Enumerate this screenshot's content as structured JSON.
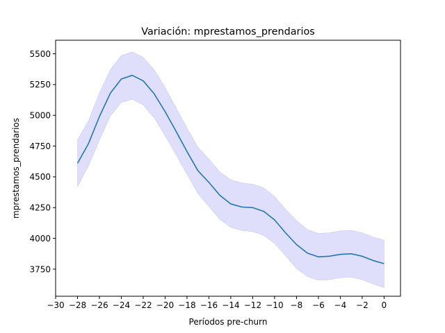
{
  "chart_data": {
    "type": "line",
    "title": "Variación: mprestamos_prendarios",
    "xlabel": "Períodos pre-churn",
    "ylabel": "mprestamos_prendarios",
    "xlim": [
      -30,
      1.5
    ],
    "ylim": [
      3530,
      5610
    ],
    "xticks": [
      -30,
      -28,
      -26,
      -24,
      -22,
      -20,
      -18,
      -16,
      -14,
      -12,
      -10,
      -8,
      -6,
      -4,
      -2,
      0
    ],
    "xtick_labels": [
      "−30",
      "−28",
      "−26",
      "−24",
      "−22",
      "−20",
      "−18",
      "−16",
      "−14",
      "−12",
      "−10",
      "−8",
      "−6",
      "−4",
      "−2",
      "0"
    ],
    "yticks": [
      3750,
      4000,
      4250,
      4500,
      4750,
      5000,
      5250,
      5500
    ],
    "ytick_labels": [
      "3750",
      "4000",
      "4250",
      "4500",
      "4750",
      "5000",
      "5250",
      "5500"
    ],
    "grid": false,
    "x": [
      -28,
      -27,
      -26,
      -25,
      -24,
      -23,
      -22,
      -21,
      -20,
      -19,
      -18,
      -17,
      -16,
      -15,
      -14,
      -13,
      -12,
      -11,
      -10,
      -9,
      -8,
      -7,
      -6,
      -5,
      -4,
      -3,
      -2,
      -1,
      0
    ],
    "series": [
      {
        "values": [
          4610,
          4770,
          4990,
          5180,
          5295,
          5325,
          5280,
          5175,
          5030,
          4870,
          4705,
          4550,
          4455,
          4350,
          4280,
          4255,
          4250,
          4220,
          4150,
          4045,
          3950,
          3880,
          3850,
          3855,
          3870,
          3875,
          3855,
          3820,
          3795
        ],
        "lower": [
          4420,
          4590,
          4800,
          4995,
          5105,
          5130,
          5085,
          4980,
          4835,
          4680,
          4520,
          4365,
          4260,
          4155,
          4090,
          4065,
          4055,
          4025,
          3960,
          3860,
          3755,
          3690,
          3660,
          3665,
          3680,
          3685,
          3665,
          3630,
          3600
        ],
        "upper": [
          4800,
          4955,
          5180,
          5370,
          5485,
          5515,
          5470,
          5370,
          5225,
          5060,
          4895,
          4740,
          4645,
          4540,
          4475,
          4450,
          4440,
          4410,
          4340,
          4235,
          4145,
          4070,
          4040,
          4045,
          4060,
          4065,
          4045,
          4010,
          3985
        ],
        "line_color": "#1f77b4",
        "band_color": "#c9c9f8"
      }
    ]
  }
}
